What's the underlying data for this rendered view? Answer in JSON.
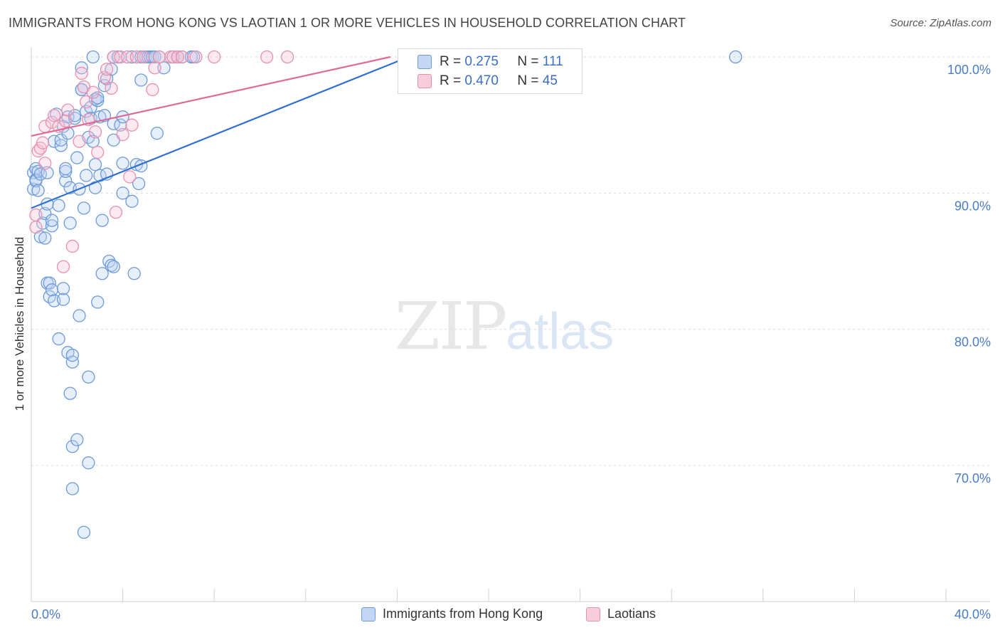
{
  "title": "IMMIGRANTS FROM HONG KONG VS LAOTIAN 1 OR MORE VEHICLES IN HOUSEHOLD CORRELATION CHART",
  "source": "Source: ZipAtlas.com",
  "watermark": {
    "zip": "ZIP",
    "atlas": "atlas"
  },
  "legend": {
    "r_label": "R =",
    "n_label": "N =",
    "rows": [
      {
        "r": "0.275",
        "n": "111"
      },
      {
        "r": "0.470",
        "n": "45"
      }
    ]
  },
  "colors": {
    "blue": "#5b8fd6",
    "blue_fill": "#b9d1f3",
    "pink": "#e07aa0",
    "pink_fill": "#f7c3d4",
    "blue_line": "#2f6fcf",
    "pink_line": "#e06a95"
  },
  "chart_data": {
    "type": "scatter",
    "title": "IMMIGRANTS FROM HONG KONG VS LAOTIAN 1 OR MORE VEHICLES IN HOUSEHOLD CORRELATION CHART",
    "xlabel": "",
    "ylabel": "1 or more Vehicles in Household",
    "xlim": [
      0,
      40
    ],
    "ylim": [
      62,
      101.5
    ],
    "x_tick_labels": [
      "0.0%",
      "40.0%"
    ],
    "y_ticks": [
      70,
      80,
      90,
      100
    ],
    "y_tick_labels": [
      "70.0%",
      "80.0%",
      "90.0%",
      "100.0%"
    ],
    "grid": "horizontal dashed",
    "legend_position": "top-center",
    "series": [
      {
        "name": "Immigrants from Hong Kong",
        "color": "#5b8fd6",
        "trend": {
          "x": [
            0.0,
            16.5
          ],
          "y": [
            88.9,
            100.0
          ]
        },
        "points": [
          [
            0.1,
            91.5
          ],
          [
            0.1,
            90.3
          ],
          [
            0.2,
            91.0
          ],
          [
            0.2,
            91.8
          ],
          [
            0.2,
            90.9
          ],
          [
            0.3,
            90.2
          ],
          [
            0.3,
            91.6
          ],
          [
            0.4,
            86.8
          ],
          [
            0.4,
            91.4
          ],
          [
            0.5,
            87.8
          ],
          [
            0.6,
            88.5
          ],
          [
            0.6,
            86.7
          ],
          [
            0.7,
            91.5
          ],
          [
            0.7,
            89.2
          ],
          [
            0.7,
            83.4
          ],
          [
            0.8,
            83.4
          ],
          [
            0.8,
            82.4
          ],
          [
            0.9,
            82.9
          ],
          [
            0.9,
            87.6
          ],
          [
            0.9,
            88.0
          ],
          [
            1.0,
            82.1
          ],
          [
            1.0,
            93.8
          ],
          [
            1.1,
            95.8
          ],
          [
            1.2,
            79.3
          ],
          [
            1.2,
            89.1
          ],
          [
            1.3,
            93.5
          ],
          [
            1.3,
            93.9
          ],
          [
            1.4,
            82.2
          ],
          [
            1.4,
            83.0
          ],
          [
            1.4,
            94.9
          ],
          [
            1.5,
            90.9
          ],
          [
            1.5,
            91.6
          ],
          [
            1.5,
            91.8
          ],
          [
            1.6,
            95.6
          ],
          [
            1.6,
            94.4
          ],
          [
            1.6,
            78.3
          ],
          [
            1.7,
            75.3
          ],
          [
            1.7,
            87.8
          ],
          [
            1.7,
            90.4
          ],
          [
            1.8,
            77.6
          ],
          [
            1.8,
            78.1
          ],
          [
            1.8,
            68.3
          ],
          [
            1.8,
            71.4
          ],
          [
            1.9,
            95.5
          ],
          [
            1.9,
            95.7
          ],
          [
            2.0,
            71.9
          ],
          [
            2.0,
            92.6
          ],
          [
            2.1,
            81.0
          ],
          [
            2.1,
            90.3
          ],
          [
            2.2,
            97.6
          ],
          [
            2.2,
            99.2
          ],
          [
            2.2,
            97.6
          ],
          [
            2.3,
            65.1
          ],
          [
            2.3,
            88.9
          ],
          [
            2.4,
            91.3
          ],
          [
            2.4,
            96.0
          ],
          [
            2.5,
            94.1
          ],
          [
            2.5,
            76.5
          ],
          [
            2.5,
            70.2
          ],
          [
            2.6,
            96.3
          ],
          [
            2.6,
            95.5
          ],
          [
            2.7,
            93.8
          ],
          [
            2.7,
            100.0
          ],
          [
            2.8,
            96.9
          ],
          [
            2.8,
            92.1
          ],
          [
            2.8,
            90.4
          ],
          [
            2.9,
            82.0
          ],
          [
            2.9,
            96.8
          ],
          [
            2.9,
            97.0
          ],
          [
            3.0,
            95.6
          ],
          [
            3.0,
            91.3
          ],
          [
            3.1,
            88.0
          ],
          [
            3.1,
            84.1
          ],
          [
            3.2,
            97.9
          ],
          [
            3.2,
            95.7
          ],
          [
            3.3,
            91.4
          ],
          [
            3.3,
            98.4
          ],
          [
            3.4,
            85.0
          ],
          [
            3.5,
            84.7
          ],
          [
            3.5,
            99.1
          ],
          [
            3.6,
            84.6
          ],
          [
            3.6,
            93.9
          ],
          [
            3.6,
            95.1
          ],
          [
            3.6,
            100.0
          ],
          [
            3.8,
            100.0
          ],
          [
            3.9,
            95.0
          ],
          [
            4.0,
            90.0
          ],
          [
            4.0,
            92.2
          ],
          [
            4.0,
            95.6
          ],
          [
            4.4,
            100.0
          ],
          [
            4.4,
            89.4
          ],
          [
            4.5,
            84.1
          ],
          [
            4.6,
            92.1
          ],
          [
            4.7,
            90.7
          ],
          [
            4.8,
            92.0
          ],
          [
            4.8,
            98.3
          ],
          [
            4.8,
            100.0
          ],
          [
            5.0,
            100.0
          ],
          [
            5.1,
            100.0
          ],
          [
            5.2,
            100.0
          ],
          [
            5.3,
            100.0
          ],
          [
            5.4,
            100.0
          ],
          [
            5.5,
            94.4
          ],
          [
            5.6,
            100.0
          ],
          [
            5.8,
            99.2
          ],
          [
            6.2,
            100.0
          ],
          [
            6.4,
            100.0
          ],
          [
            6.6,
            100.0
          ],
          [
            7.0,
            100.0
          ],
          [
            7.1,
            100.0
          ],
          [
            30.8,
            100.0
          ]
        ]
      },
      {
        "name": "Laotians",
        "color": "#e07aa0",
        "trend": {
          "x": [
            0.0,
            15.7
          ],
          "y": [
            94.2,
            100.0
          ]
        },
        "points": [
          [
            0.2,
            87.5
          ],
          [
            0.2,
            88.4
          ],
          [
            0.3,
            93.1
          ],
          [
            0.4,
            93.3
          ],
          [
            0.5,
            93.7
          ],
          [
            0.6,
            94.9
          ],
          [
            0.6,
            92.2
          ],
          [
            0.9,
            95.2
          ],
          [
            1.0,
            95.7
          ],
          [
            1.2,
            94.9
          ],
          [
            1.4,
            84.6
          ],
          [
            1.5,
            95.3
          ],
          [
            1.6,
            96.1
          ],
          [
            1.8,
            86.1
          ],
          [
            2.1,
            93.8
          ],
          [
            2.2,
            98.8
          ],
          [
            2.3,
            97.8
          ],
          [
            2.4,
            96.7
          ],
          [
            2.5,
            95.4
          ],
          [
            2.7,
            97.4
          ],
          [
            2.8,
            94.5
          ],
          [
            2.9,
            93.0
          ],
          [
            3.2,
            98.5
          ],
          [
            3.3,
            99.1
          ],
          [
            3.5,
            97.7
          ],
          [
            3.6,
            100.0
          ],
          [
            3.7,
            88.6
          ],
          [
            3.9,
            100.0
          ],
          [
            4.0,
            94.3
          ],
          [
            4.2,
            100.0
          ],
          [
            4.3,
            91.2
          ],
          [
            4.4,
            95.0
          ],
          [
            4.6,
            100.0
          ],
          [
            4.9,
            100.0
          ],
          [
            5.3,
            97.6
          ],
          [
            5.4,
            99.2
          ],
          [
            5.6,
            100.0
          ],
          [
            6.1,
            100.0
          ],
          [
            6.2,
            100.0
          ],
          [
            6.4,
            100.0
          ],
          [
            6.6,
            100.0
          ],
          [
            7.2,
            100.0
          ],
          [
            8.0,
            100.0
          ],
          [
            10.3,
            100.0
          ],
          [
            11.2,
            100.0
          ]
        ]
      }
    ]
  },
  "bottom_legend": [
    {
      "label": "Immigrants from Hong Kong"
    },
    {
      "label": "Laotians"
    }
  ]
}
